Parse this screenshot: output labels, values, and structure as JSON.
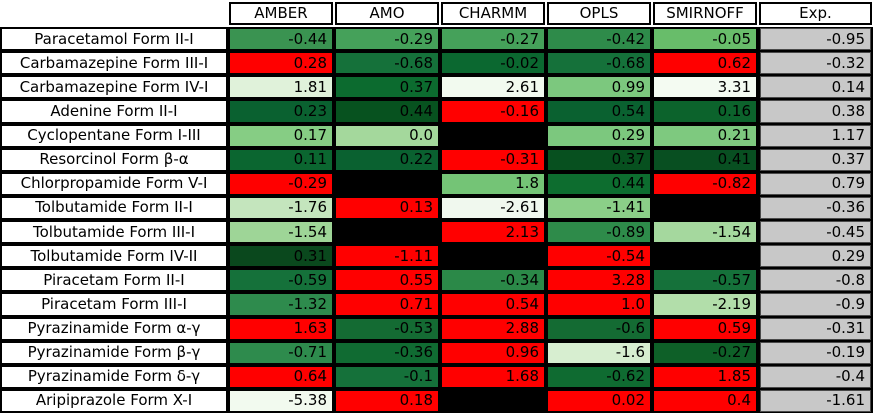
{
  "colors": {
    "red": "#ff0000",
    "missing": "#000000",
    "exp_gray": "#c8c8c8",
    "border": "#000000"
  },
  "chart_data": {
    "type": "heatmap",
    "columns": [
      "AMBER",
      "AMO",
      "CHARMM",
      "OPLS",
      "SMIRNOFF",
      "Exp."
    ],
    "rows": [
      {
        "label": "Paracetamol Form II-I",
        "cells": [
          {
            "value": "-0.44",
            "color": "#3a9351"
          },
          {
            "value": "-0.29",
            "color": "#45a15a"
          },
          {
            "value": "-0.27",
            "color": "#45a15a"
          },
          {
            "value": "-0.42",
            "color": "#2e8b4a"
          },
          {
            "value": "-0.05",
            "color": "#68bd6a"
          }
        ],
        "exp": "-0.95"
      },
      {
        "label": "Carbamazepine Form III-I",
        "cells": [
          {
            "value": "0.28",
            "color": "#ff0000"
          },
          {
            "value": "-0.68",
            "color": "#15713a"
          },
          {
            "value": "-0.02",
            "color": "#0b6830"
          },
          {
            "value": "-0.68",
            "color": "#15713a"
          },
          {
            "value": "0.62",
            "color": "#ff0000"
          }
        ],
        "exp": "-0.32"
      },
      {
        "label": "Carbamazepine Form IV-I",
        "cells": [
          {
            "value": "1.81",
            "color": "#e0f2da"
          },
          {
            "value": "0.37",
            "color": "#0c6b2f"
          },
          {
            "value": "2.61",
            "color": "#f2faef"
          },
          {
            "value": "0.99",
            "color": "#7cc87e"
          },
          {
            "value": "3.31",
            "color": "#f4fbf2"
          }
        ],
        "exp": "0.14"
      },
      {
        "label": "Adenine Form II-I",
        "cells": [
          {
            "value": "0.23",
            "color": "#0a6130"
          },
          {
            "value": "0.44",
            "color": "#07521f"
          },
          {
            "value": "-0.16",
            "color": "#ff0000"
          },
          {
            "value": "0.54",
            "color": "#0a6130"
          },
          {
            "value": "0.16",
            "color": "#0c632c"
          }
        ],
        "exp": "0.38"
      },
      {
        "label": "Cyclopentane Form I-III",
        "cells": [
          {
            "value": "0.17",
            "color": "#86cd84"
          },
          {
            "value": "0.0",
            "color": "#a4d89c"
          },
          {
            "value": null,
            "color": "#000000"
          },
          {
            "value": "0.29",
            "color": "#7cc87e"
          },
          {
            "value": "0.21",
            "color": "#7ec97f"
          }
        ],
        "exp": "1.17"
      },
      {
        "label": "Resorcinol Form β-α",
        "cells": [
          {
            "value": "0.11",
            "color": "#0b6630"
          },
          {
            "value": "0.22",
            "color": "#0a6130"
          },
          {
            "value": "-0.31",
            "color": "#ff0000"
          },
          {
            "value": "0.37",
            "color": "#07501f"
          },
          {
            "value": "0.41",
            "color": "#084f21"
          }
        ],
        "exp": "0.37"
      },
      {
        "label": "Chlorpropamide Form V-I",
        "cells": [
          {
            "value": "-0.29",
            "color": "#ff0000"
          },
          {
            "value": null,
            "color": "#000000"
          },
          {
            "value": "1.8",
            "color": "#74c476"
          },
          {
            "value": "0.44",
            "color": "#0d6d2f"
          },
          {
            "value": "-0.82",
            "color": "#ff0000"
          }
        ],
        "exp": "0.79"
      },
      {
        "label": "Tolbutamide Form II-I",
        "cells": [
          {
            "value": "-1.76",
            "color": "#c4e5bd"
          },
          {
            "value": "0.13",
            "color": "#ff0000"
          },
          {
            "value": "-2.61",
            "color": "#f0f8ee"
          },
          {
            "value": "-1.41",
            "color": "#8bcf88"
          },
          {
            "value": null,
            "color": "#000000"
          }
        ],
        "exp": "-0.36"
      },
      {
        "label": "Tolbutamide Form III-I",
        "cells": [
          {
            "value": "-1.54",
            "color": "#9ed597"
          },
          {
            "value": null,
            "color": "#000000"
          },
          {
            "value": "2.13",
            "color": "#ff0000"
          },
          {
            "value": "-0.89",
            "color": "#2e8b4a"
          },
          {
            "value": "-1.54",
            "color": "#a5d89e"
          }
        ],
        "exp": "-0.45"
      },
      {
        "label": "Tolbutamide Form IV-II",
        "cells": [
          {
            "value": "0.31",
            "color": "#0a481d"
          },
          {
            "value": "-1.11",
            "color": "#ff0000"
          },
          {
            "value": null,
            "color": "#000000"
          },
          {
            "value": "-0.54",
            "color": "#ff0000"
          },
          {
            "value": null,
            "color": "#000000"
          }
        ],
        "exp": "0.29"
      },
      {
        "label": "Piracetam Form II-I",
        "cells": [
          {
            "value": "-0.59",
            "color": "#15713a"
          },
          {
            "value": "0.55",
            "color": "#ff0000"
          },
          {
            "value": "-0.34",
            "color": "#2b8948"
          },
          {
            "value": "3.28",
            "color": "#ff0000"
          },
          {
            "value": "-0.57",
            "color": "#15713a"
          }
        ],
        "exp": "-0.8"
      },
      {
        "label": "Piracetam Form III-I",
        "cells": [
          {
            "value": "-1.32",
            "color": "#2e8b4d"
          },
          {
            "value": "0.71",
            "color": "#ff0000"
          },
          {
            "value": "0.54",
            "color": "#ff0000"
          },
          {
            "value": "1.0",
            "color": "#ff0000"
          },
          {
            "value": "-2.19",
            "color": "#b2deaa"
          }
        ],
        "exp": "-0.9"
      },
      {
        "label": "Pyrazinamide Form α-γ",
        "cells": [
          {
            "value": "1.63",
            "color": "#ff0000"
          },
          {
            "value": "-0.53",
            "color": "#146b33"
          },
          {
            "value": "2.88",
            "color": "#ff0000"
          },
          {
            "value": "-0.6",
            "color": "#146b33"
          },
          {
            "value": "0.59",
            "color": "#ff0000"
          }
        ],
        "exp": "-0.31"
      },
      {
        "label": "Pyrazinamide Form β-γ",
        "cells": [
          {
            "value": "-0.71",
            "color": "#2e8b4d"
          },
          {
            "value": "-0.36",
            "color": "#106b32"
          },
          {
            "value": "0.96",
            "color": "#ff0000"
          },
          {
            "value": "-1.6",
            "color": "#d7eed0"
          },
          {
            "value": "-0.27",
            "color": "#0e6028"
          }
        ],
        "exp": "-0.19"
      },
      {
        "label": "Pyrazinamide Form δ-γ",
        "cells": [
          {
            "value": "0.64",
            "color": "#ff0000"
          },
          {
            "value": "-0.1",
            "color": "#15713a"
          },
          {
            "value": "1.68",
            "color": "#ff0000"
          },
          {
            "value": "-0.62",
            "color": "#0f6b31"
          },
          {
            "value": "1.85",
            "color": "#ff0000"
          }
        ],
        "exp": "-0.4"
      },
      {
        "label": "Aripiprazole Form X-I",
        "cells": [
          {
            "value": "-5.38",
            "color": "#f2faef"
          },
          {
            "value": "0.18",
            "color": "#ff0000"
          },
          {
            "value": null,
            "color": "#000000"
          },
          {
            "value": "0.02",
            "color": "#ff0000"
          },
          {
            "value": "0.4",
            "color": "#ff0000"
          }
        ],
        "exp": "-1.61"
      }
    ]
  }
}
